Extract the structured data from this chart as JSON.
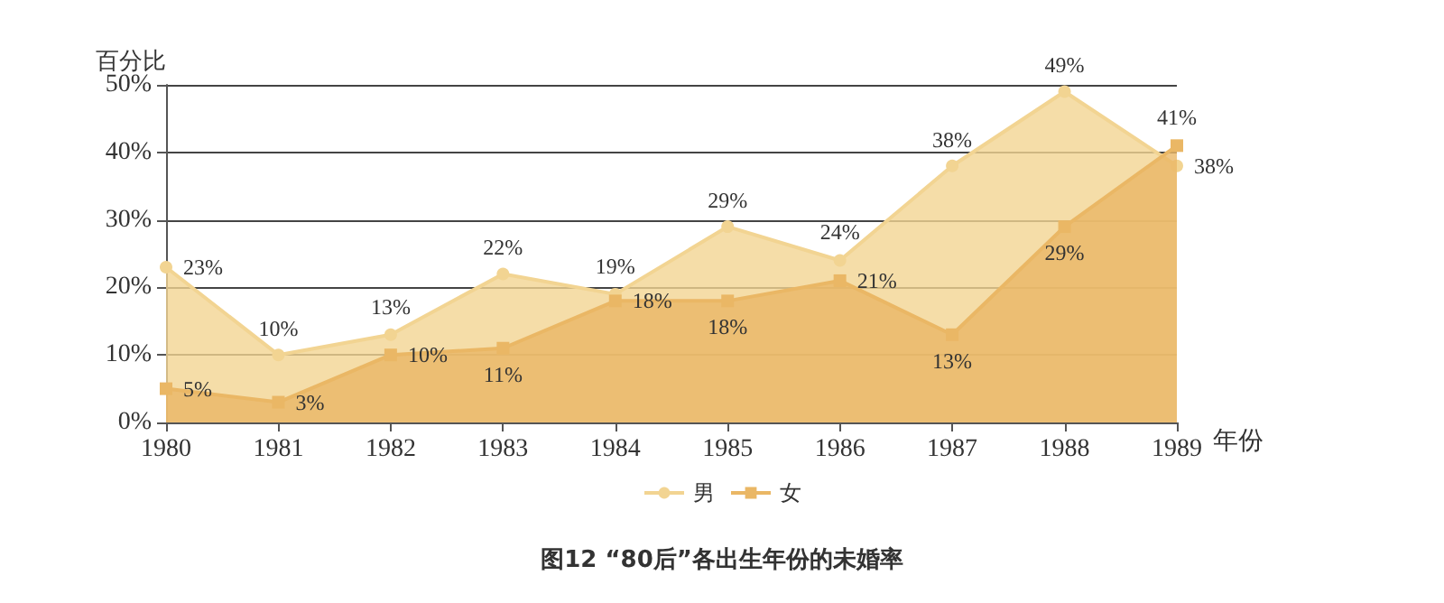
{
  "chart_data": {
    "type": "area",
    "title": "图12 “80后”各出生年份的未婚率",
    "xlabel": "年份",
    "ylabel": "百分比",
    "categories": [
      "1980",
      "1981",
      "1982",
      "1983",
      "1984",
      "1985",
      "1986",
      "1987",
      "1988",
      "1989"
    ],
    "series": [
      {
        "name": "男",
        "color": "#f2d492",
        "marker": "circle",
        "values": [
          23,
          10,
          13,
          22,
          19,
          29,
          24,
          38,
          49,
          38
        ],
        "value_labels": [
          "23%",
          "10%",
          "13%",
          "22%",
          "19%",
          "29%",
          "24%",
          "38%",
          "49%",
          "38%"
        ]
      },
      {
        "name": "女",
        "color": "#eab765",
        "marker": "square",
        "values": [
          5,
          3,
          10,
          11,
          18,
          18,
          21,
          13,
          29,
          41
        ],
        "value_labels": [
          "5%",
          "3%",
          "10%",
          "11%",
          "18%",
          "18%",
          "21%",
          "13%",
          "29%",
          "41%"
        ]
      }
    ],
    "ylim": [
      0,
      50
    ],
    "yticks": [
      {
        "value": 0,
        "label": "0%"
      },
      {
        "value": 10,
        "label": "10%"
      },
      {
        "value": 20,
        "label": "20%"
      },
      {
        "value": 30,
        "label": "30%"
      },
      {
        "value": 40,
        "label": "40%"
      },
      {
        "value": 50,
        "label": "50%"
      }
    ],
    "grid": "y",
    "legend": "bottom"
  }
}
